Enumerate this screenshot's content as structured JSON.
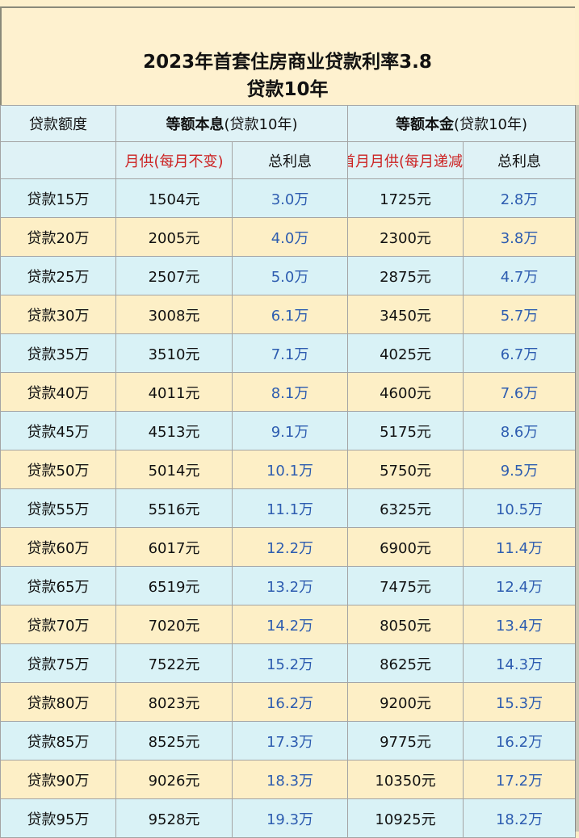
{
  "title": {
    "line1": "2023年首套住房商业贷款利率3.8",
    "line2": "贷款10年"
  },
  "header": {
    "col_amount": "贷款额度",
    "group_equal_payment_bold": "等额本息",
    "group_equal_payment_note": "(贷款10年)",
    "group_equal_principal_bold": "等额本金",
    "group_equal_principal_note": "(贷款10年)",
    "sub_monthly_fixed": "月供(每月不变)",
    "sub_total_interest_1": "总利息",
    "sub_first_month": "首月月供(每月递减",
    "sub_total_interest_2": "总利息"
  },
  "colors": {
    "interest_text": "#2e5db0",
    "subheader_red": "#cc2222",
    "row_cyan": "#d9f2f6",
    "row_cream": "#fdefc6"
  },
  "rows": [
    {
      "amount": "贷款15万",
      "payment": "1504元",
      "interest1": "3.0万",
      "first": "1725元",
      "interest2": "2.8万"
    },
    {
      "amount": "贷款20万",
      "payment": "2005元",
      "interest1": "4.0万",
      "first": "2300元",
      "interest2": "3.8万"
    },
    {
      "amount": "贷款25万",
      "payment": "2507元",
      "interest1": "5.0万",
      "first": "2875元",
      "interest2": "4.7万"
    },
    {
      "amount": "贷款30万",
      "payment": "3008元",
      "interest1": "6.1万",
      "first": "3450元",
      "interest2": "5.7万"
    },
    {
      "amount": "贷款35万",
      "payment": "3510元",
      "interest1": "7.1万",
      "first": "4025元",
      "interest2": "6.7万"
    },
    {
      "amount": "贷款40万",
      "payment": "4011元",
      "interest1": "8.1万",
      "first": "4600元",
      "interest2": "7.6万"
    },
    {
      "amount": "贷款45万",
      "payment": "4513元",
      "interest1": "9.1万",
      "first": "5175元",
      "interest2": "8.6万"
    },
    {
      "amount": "贷款50万",
      "payment": "5014元",
      "interest1": "10.1万",
      "first": "5750元",
      "interest2": "9.5万"
    },
    {
      "amount": "贷款55万",
      "payment": "5516元",
      "interest1": "11.1万",
      "first": "6325元",
      "interest2": "10.5万"
    },
    {
      "amount": "贷款60万",
      "payment": "6017元",
      "interest1": "12.2万",
      "first": "6900元",
      "interest2": "11.4万"
    },
    {
      "amount": "贷款65万",
      "payment": "6519元",
      "interest1": "13.2万",
      "first": "7475元",
      "interest2": "12.4万"
    },
    {
      "amount": "贷款70万",
      "payment": "7020元",
      "interest1": "14.2万",
      "first": "8050元",
      "interest2": "13.4万"
    },
    {
      "amount": "贷款75万",
      "payment": "7522元",
      "interest1": "15.2万",
      "first": "8625元",
      "interest2": "14.3万"
    },
    {
      "amount": "贷款80万",
      "payment": "8023元",
      "interest1": "16.2万",
      "first": "9200元",
      "interest2": "15.3万"
    },
    {
      "amount": "贷款85万",
      "payment": "8525元",
      "interest1": "17.3万",
      "first": "9775元",
      "interest2": "16.2万"
    },
    {
      "amount": "贷款90万",
      "payment": "9026元",
      "interest1": "18.3万",
      "first": "10350元",
      "interest2": "17.2万"
    },
    {
      "amount": "贷款95万",
      "payment": "9528元",
      "interest1": "19.3万",
      "first": "10925元",
      "interest2": "18.2万"
    }
  ]
}
